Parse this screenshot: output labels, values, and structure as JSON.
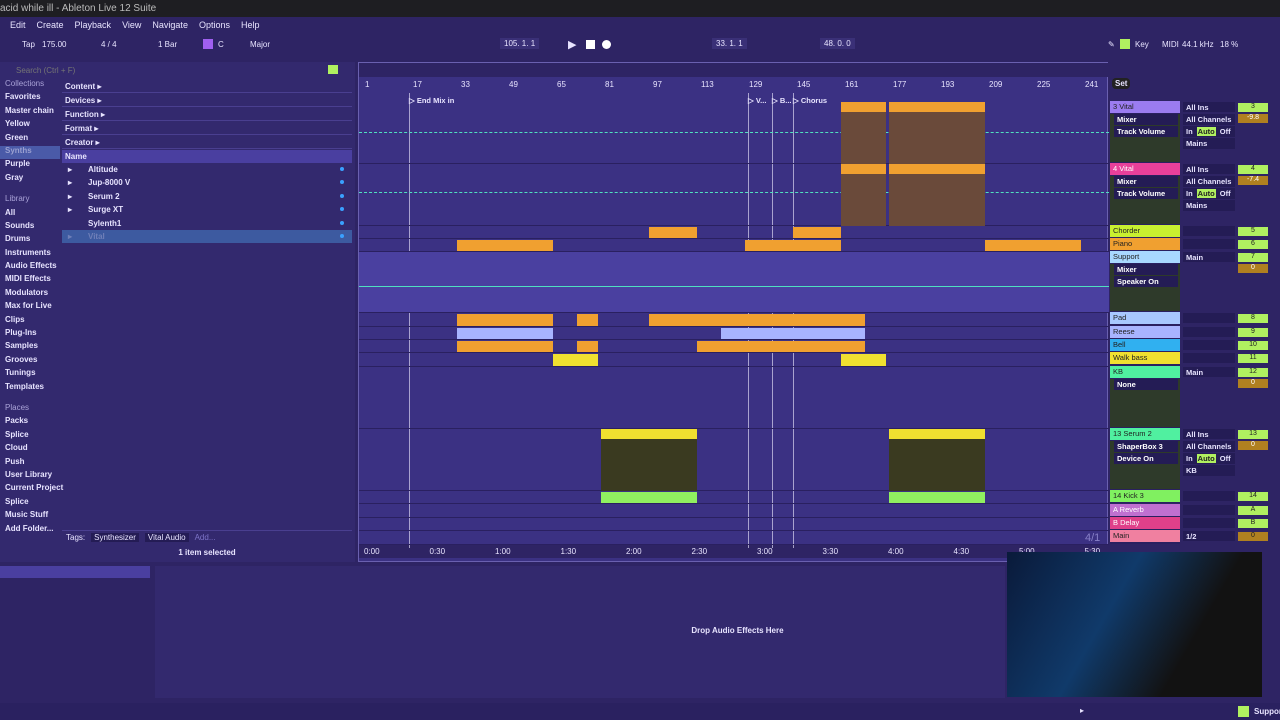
{
  "window": {
    "title": "acid while ill - Ableton Live 12 Suite"
  },
  "menu": [
    "Edit",
    "Create",
    "Playback",
    "View",
    "Navigate",
    "Options",
    "Help"
  ],
  "control_bar": {
    "tap": "Tap",
    "tempo": "175.00",
    "time_sig": "4 / 4",
    "quantize": "1 Bar",
    "key": "C",
    "scale": "Major",
    "position": "105.  1.  1",
    "loop_start": "33.  1.  1",
    "loop_length": "48.  0.  0",
    "key_map": "Key",
    "midi_map": "MIDI",
    "sample_rate": "44.1 kHz",
    "cpu": "18 %"
  },
  "browser": {
    "search_placeholder": "Search (Ctrl + F)",
    "collections_header": "Collections",
    "collections": [
      "Favorites",
      "Master chain",
      "Yellow",
      "Green",
      "Synths",
      "Purple",
      "Gray"
    ],
    "library_header": "Library",
    "library": [
      "All",
      "Sounds",
      "Drums",
      "Instruments",
      "Audio Effects",
      "MIDI Effects",
      "Modulators",
      "Max for Live",
      "Clips",
      "Plug-Ins",
      "Samples",
      "Grooves",
      "Tunings",
      "Templates"
    ],
    "places_header": "Places",
    "places": [
      "Packs",
      "Splice",
      "Cloud",
      "Push",
      "User Library",
      "Current Project",
      "Splice",
      "Music Stuff",
      "Add Folder..."
    ],
    "filters": [
      "Content ▸",
      "Devices ▸",
      "Function ▸",
      "Format ▸",
      "Creator ▸"
    ],
    "name_header": "Name",
    "items": [
      "Altitude",
      "Jup-8000 V",
      "Serum 2",
      "Surge XT",
      "Sylenth1",
      "Vital"
    ],
    "tags_label": "Tags:",
    "tags": [
      "Synthesizer",
      "Vital Audio"
    ],
    "tags_add": "Add...",
    "status": "1 item selected"
  },
  "arrangement": {
    "bar_ticks": [
      "1",
      "17",
      "33",
      "49",
      "65",
      "81",
      "97",
      "113",
      "129",
      "145",
      "161",
      "177",
      "193",
      "209",
      "225",
      "241"
    ],
    "time_ticks": [
      "0:00",
      "0:30",
      "1:00",
      "1:30",
      "2:00",
      "2:30",
      "3:00",
      "3:30",
      "4:00",
      "4:30",
      "5:00",
      "5:30"
    ],
    "locators": [
      {
        "label": "End Mix in",
        "bar": 16
      },
      {
        "label": "V...",
        "bar": 129
      },
      {
        "label": "B...",
        "bar": 137
      },
      {
        "label": "Chorus",
        "bar": 144
      }
    ],
    "set_label": "Set",
    "time_sig_display": "4/1",
    "clips": [
      {
        "track": 0,
        "start": 160,
        "end": 175,
        "color": "#f0a030"
      },
      {
        "track": 0,
        "start": 176,
        "end": 208,
        "color": "#f0a030"
      },
      {
        "track": 1,
        "start": 160,
        "end": 175,
        "color": "#f0a030"
      },
      {
        "track": 1,
        "start": 176,
        "end": 208,
        "color": "#f0a030"
      },
      {
        "track": 2,
        "start": 96,
        "end": 112,
        "color": "#f0a030"
      },
      {
        "track": 2,
        "start": 144,
        "end": 160,
        "color": "#f0a030"
      },
      {
        "track": 3,
        "start": 32,
        "end": 64,
        "color": "#f0a030"
      },
      {
        "track": 3,
        "start": 128,
        "end": 160,
        "color": "#f0a030"
      },
      {
        "track": 3,
        "start": 208,
        "end": 240,
        "color": "#f0a030"
      },
      {
        "track": 5,
        "start": 32,
        "end": 64,
        "color": "#f0a030"
      },
      {
        "track": 5,
        "start": 72,
        "end": 79,
        "color": "#f0a030"
      },
      {
        "track": 5,
        "start": 96,
        "end": 168,
        "color": "#f0a030"
      },
      {
        "track": 6,
        "start": 32,
        "end": 64,
        "color": "#a8b4ff"
      },
      {
        "track": 6,
        "start": 120,
        "end": 168,
        "color": "#a8b4ff"
      },
      {
        "track": 7,
        "start": 32,
        "end": 64,
        "color": "#f0a030"
      },
      {
        "track": 7,
        "start": 72,
        "end": 79,
        "color": "#f0a030"
      },
      {
        "track": 7,
        "start": 112,
        "end": 168,
        "color": "#f0a030"
      },
      {
        "track": 8,
        "start": 64,
        "end": 79,
        "color": "#f0e030"
      },
      {
        "track": 8,
        "start": 160,
        "end": 175,
        "color": "#f0e030"
      },
      {
        "track": 10,
        "start": 80,
        "end": 112,
        "color": "#f0e030"
      },
      {
        "track": 10,
        "start": 176,
        "end": 208,
        "color": "#f0e030"
      },
      {
        "track": 11,
        "start": 80,
        "end": 112,
        "color": "#90f060"
      },
      {
        "track": 11,
        "start": 176,
        "end": 208,
        "color": "#90f060"
      }
    ]
  },
  "tracks": [
    {
      "name": "3 Vital",
      "color": "#9b7cf0",
      "input": "All Ins",
      "num": "3",
      "volume": "-9.8",
      "device": "Mixer",
      "param": "Track Volume",
      "out": "Mains"
    },
    {
      "name": "4 Vital",
      "color": "#e8409a",
      "input": "All Ins",
      "num": "4",
      "volume": "-7.4",
      "device": "Mixer",
      "param": "Track Volume",
      "out": "Mains"
    },
    {
      "name": "Chorder",
      "color": "#c8f030",
      "num": "5"
    },
    {
      "name": "Piano",
      "color": "#f0a030",
      "num": "6"
    },
    {
      "name": "Support",
      "color": "#a8d8ff",
      "input": "Main",
      "num": "7",
      "volume": "0",
      "device": "Mixer",
      "param": "Speaker On"
    },
    {
      "name": "Pad",
      "color": "#a8c8ff",
      "num": "8"
    },
    {
      "name": "Reese",
      "color": "#a8b4ff",
      "num": "9"
    },
    {
      "name": "Bell",
      "color": "#30b0f0",
      "num": "10"
    },
    {
      "name": "Walk bass",
      "color": "#f0e030",
      "num": "11"
    },
    {
      "name": "KB",
      "color": "#50f0a0",
      "input": "Main",
      "num": "12",
      "volume": "0",
      "device": "None"
    },
    {
      "name": "13 Serum 2",
      "color": "#50f0a0",
      "input": "All Ins",
      "num": "13",
      "volume": "0",
      "device": "ShaperBox 3",
      "param": "Device On",
      "out": "KB"
    },
    {
      "name": "14 Kick 3",
      "color": "#80f060",
      "num": "14"
    },
    {
      "name": "A Reverb",
      "color": "#c070d0",
      "num": "A"
    },
    {
      "name": "B Delay",
      "color": "#e0408a",
      "num": "B"
    },
    {
      "name": "Main",
      "color": "#f080a0",
      "input": "1/2",
      "num": "0"
    }
  ],
  "io_labels": {
    "channel": "All Channels",
    "in": "In",
    "auto": "Auto",
    "off": "Off",
    "neg_inf": "-∞"
  },
  "device_view": {
    "drop_hint": "Drop Audio Effects Here"
  },
  "status_bar": {
    "right": "Support"
  }
}
